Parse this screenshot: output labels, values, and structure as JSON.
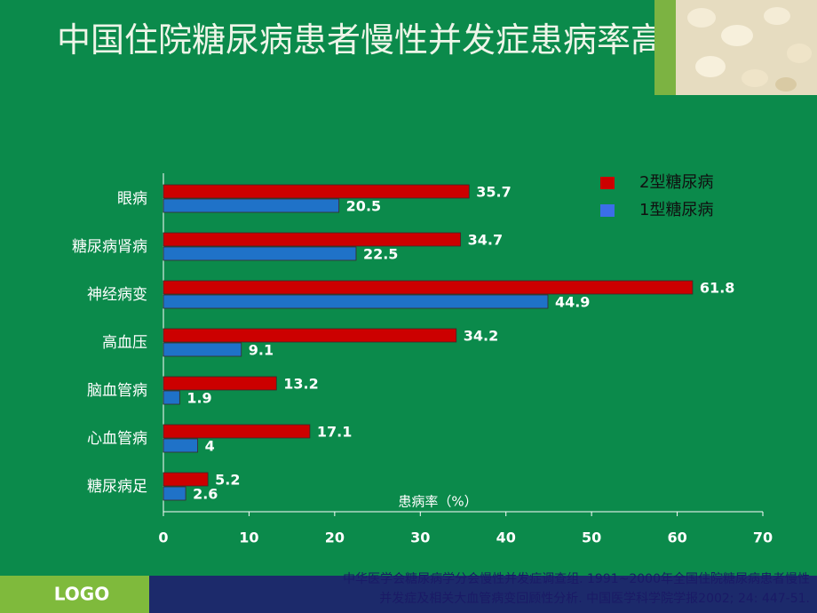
{
  "chart_data": {
    "type": "bar",
    "orientation": "horizontal",
    "title": "中国住院糖尿病患者慢性并发症患病率高",
    "x_label": "患病率（%）",
    "categories": [
      "眼病",
      "糖尿病肾病",
      "神经病变",
      "高血压",
      "脑血管病",
      "心血管病",
      "糖尿病足"
    ],
    "series": [
      {
        "name": "2型糖尿病",
        "color": "#cc0000",
        "values": [
          35.7,
          34.7,
          61.8,
          34.2,
          13.2,
          17.1,
          5.2
        ]
      },
      {
        "name": "1型糖尿病",
        "color": "#1f72c8",
        "values": [
          20.5,
          22.5,
          44.9,
          9.1,
          1.9,
          4,
          2.6
        ]
      }
    ],
    "xlim": [
      0,
      70
    ],
    "xticks": [
      0,
      10,
      20,
      30,
      40,
      50,
      60,
      70
    ]
  },
  "footer": {
    "logo": "LOGO",
    "reference": [
      "中华医学会糖尿病学分会慢性并发症调查组. 1991~2000年全国住院糖尿病患者慢性",
      "并发症及相关大血管病变回顾性分析. 中国医学科学院学报2002; 24: 447-51."
    ]
  }
}
